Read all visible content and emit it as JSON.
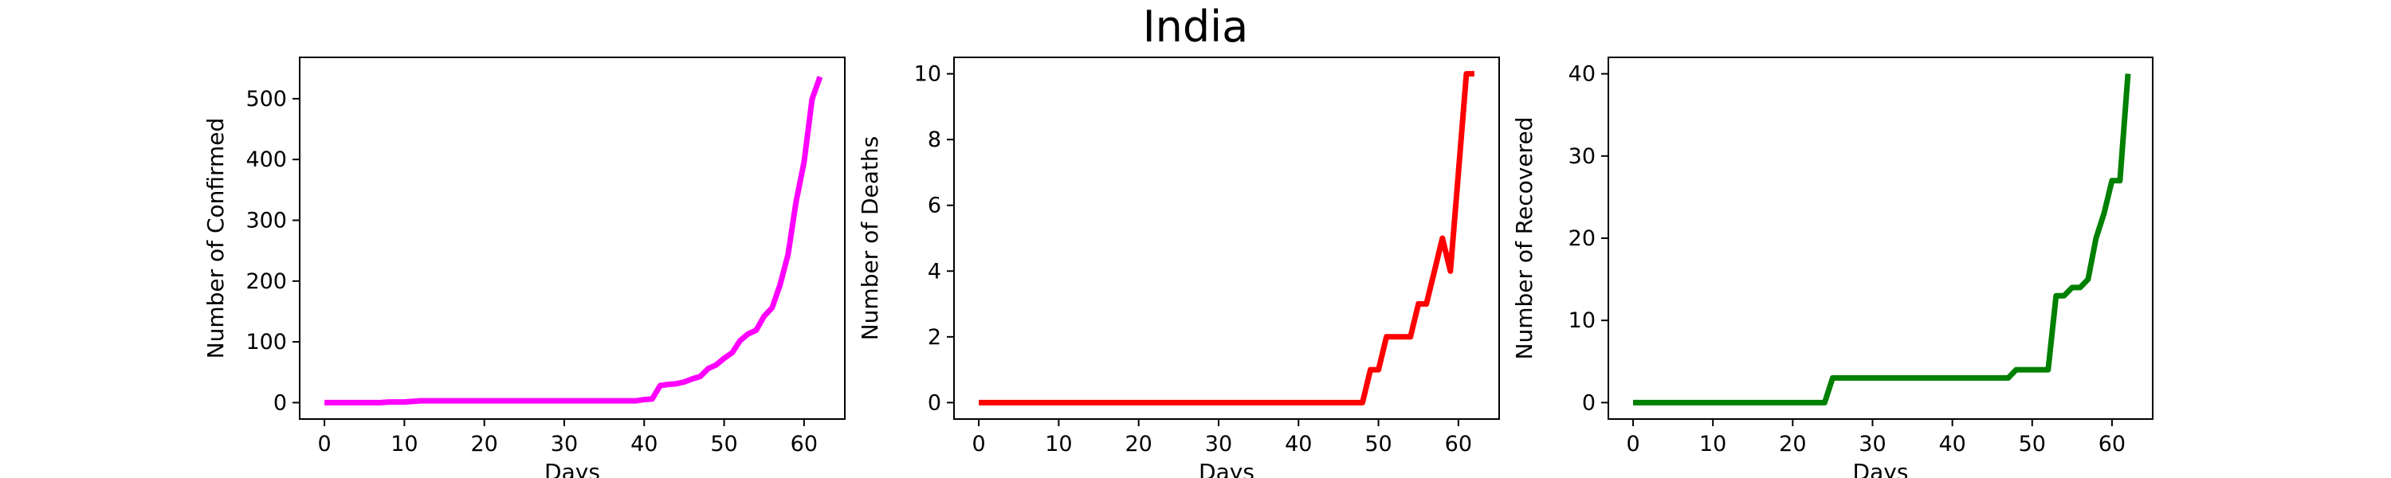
{
  "figure": {
    "title": "India"
  },
  "chart_data": [
    {
      "type": "line",
      "id": "confirmed",
      "xlabel": "Days",
      "ylabel": "Number of Confirmed",
      "xlim": [
        -3.1,
        65.1
      ],
      "ylim": [
        -27,
        568
      ],
      "xticks": [
        0,
        10,
        20,
        30,
        40,
        50,
        60
      ],
      "yticks": [
        0,
        100,
        200,
        300,
        400,
        500
      ],
      "grid": false,
      "series": [
        {
          "color": "#ff00ff",
          "x": [
            0,
            7,
            8,
            9,
            10,
            11,
            12,
            20,
            30,
            38,
            39,
            40,
            41,
            42,
            43,
            44,
            45,
            46,
            47,
            48,
            49,
            50,
            51,
            52,
            53,
            54,
            55,
            56,
            57,
            58,
            59,
            60,
            61,
            62
          ],
          "y": [
            0,
            0,
            1,
            1,
            1,
            2,
            3,
            3,
            3,
            3,
            3,
            5,
            6,
            28,
            30,
            31,
            34,
            39,
            43,
            56,
            62,
            73,
            82,
            102,
            113,
            119,
            142,
            156,
            194,
            244,
            330,
            396,
            499,
            536
          ]
        }
      ]
    },
    {
      "type": "line",
      "id": "deaths",
      "xlabel": "Days",
      "ylabel": "Number of Deaths",
      "xlim": [
        -3.1,
        65.1
      ],
      "ylim": [
        -0.5,
        10.5
      ],
      "xticks": [
        0,
        10,
        20,
        30,
        40,
        50,
        60
      ],
      "yticks": [
        0,
        2,
        4,
        6,
        8,
        10
      ],
      "grid": false,
      "series": [
        {
          "color": "#ff0000",
          "x": [
            0,
            48,
            49,
            50,
            51,
            52,
            53,
            54,
            55,
            56,
            57,
            58,
            59,
            60,
            61,
            62
          ],
          "y": [
            0,
            0,
            1,
            1,
            2,
            2,
            2,
            2,
            3,
            3,
            4,
            5,
            4,
            7,
            10,
            10
          ]
        }
      ]
    },
    {
      "type": "line",
      "id": "recovered",
      "xlabel": "Days",
      "ylabel": "Number of Recovered",
      "xlim": [
        -3.1,
        65.1
      ],
      "ylim": [
        -2,
        42
      ],
      "xticks": [
        0,
        10,
        20,
        30,
        40,
        50,
        60
      ],
      "yticks": [
        0,
        10,
        20,
        30,
        40
      ],
      "grid": false,
      "series": [
        {
          "color": "#008000",
          "x": [
            0,
            24,
            25,
            30,
            40,
            47,
            48,
            49,
            50,
            51,
            52,
            53,
            54,
            55,
            56,
            57,
            58,
            59,
            60,
            61,
            62
          ],
          "y": [
            0,
            0,
            3,
            3,
            3,
            3,
            4,
            4,
            4,
            4,
            4,
            13,
            13,
            14,
            14,
            15,
            20,
            23,
            27,
            27,
            40
          ]
        }
      ]
    }
  ]
}
